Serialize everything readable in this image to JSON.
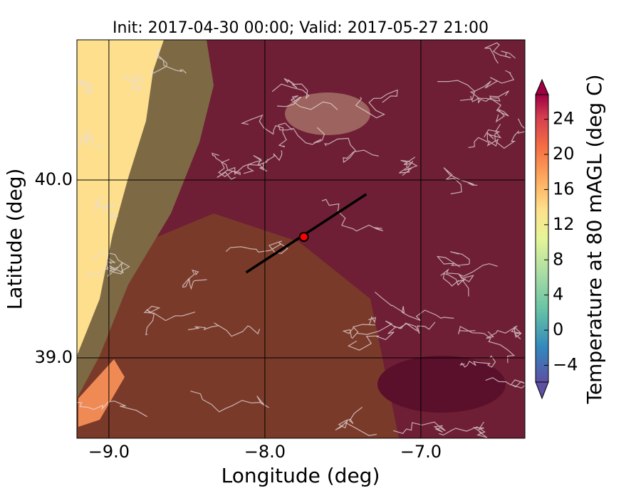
{
  "chart_data": {
    "type": "map",
    "title": "Init: 2017-04-30 00:00; Valid: 2017-05-27 21:00",
    "x_label": "Longitude (deg)",
    "y_label": "Latitude (deg)",
    "xlim": [
      -9.205,
      -6.333
    ],
    "ylim": [
      38.548,
      40.788
    ],
    "xticks": [
      {
        "value": -9,
        "label": "−9.0"
      },
      {
        "value": -8,
        "label": "−8.0"
      },
      {
        "value": -7,
        "label": "−7.0"
      }
    ],
    "yticks": [
      {
        "value": 39,
        "label": "39.0"
      },
      {
        "value": 40,
        "label": "40.0"
      }
    ],
    "grid": true,
    "transect": {
      "x": [
        -8.12,
        -7.35
      ],
      "y": [
        39.48,
        39.92
      ],
      "color": "#000000"
    },
    "marker": {
      "x": -7.75,
      "y": 39.68,
      "color": "#ff0000"
    },
    "colorbar": {
      "label": "Temperature at 80 mAGL (deg C)",
      "lim": [
        -5.9,
        26.8
      ],
      "ticks": [
        {
          "value": -4,
          "label": "−4"
        },
        0,
        4,
        8,
        12,
        16,
        20,
        24
      ]
    }
  }
}
